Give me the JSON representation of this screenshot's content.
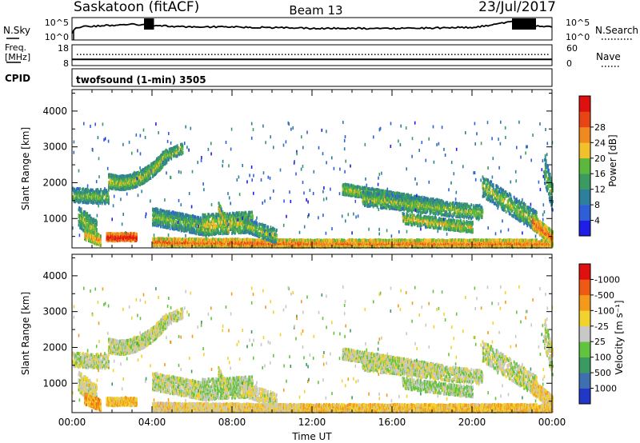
{
  "header": {
    "station": "Saskatoon (fitACF)",
    "beam": "Beam 13",
    "date": "23/Jul/2017"
  },
  "labels": {
    "nsky": "N.Sky",
    "nsearch": "N.Search",
    "freq_line1": "Freq.",
    "freq_line2": "[MHz]",
    "nave": "Nave",
    "cpid": "CPID",
    "program": "twofsound (1-min) 3505"
  },
  "chart_data": [
    {
      "type": "line",
      "name": "noise",
      "left_ticks": [
        "10^5",
        "10^0"
      ],
      "right_ticks": [
        "10^5",
        "10^0"
      ],
      "series": [
        {
          "name": "N.Sky",
          "style": "solid",
          "values_log10_profile": [
            [
              0,
              1.5
            ],
            [
              0.2,
              2.6
            ],
            [
              0.5,
              3.0
            ],
            [
              1,
              3.2
            ],
            [
              2,
              3.4
            ],
            [
              3,
              3.7
            ],
            [
              4,
              3.3
            ],
            [
              6,
              3.0
            ],
            [
              8,
              3.0
            ],
            [
              10,
              2.8
            ],
            [
              12,
              2.6
            ],
            [
              14,
              2.6
            ],
            [
              16,
              2.6
            ],
            [
              18,
              2.7
            ],
            [
              20,
              2.9
            ],
            [
              21,
              3.4
            ],
            [
              22,
              4.5
            ],
            [
              22.5,
              5.0
            ],
            [
              23,
              3.2
            ],
            [
              24,
              3.0
            ]
          ]
        }
      ]
    },
    {
      "type": "line",
      "name": "frequency-nave",
      "left_ticks": [
        "18",
        "8"
      ],
      "right_ticks": [
        "60",
        "0"
      ],
      "freq_mhz_range": [
        8,
        18
      ],
      "nave_range": [
        0,
        60
      ],
      "freq_mhz_approx": 11.0,
      "nave_approx": 32
    },
    {
      "type": "heatmap",
      "name": "power",
      "ylabel": "Slant Range [km]",
      "xlabel": "",
      "y_ticks": [
        1000,
        2000,
        3000,
        4000
      ],
      "ylim": [
        180,
        4600
      ],
      "xlim_hours": [
        0,
        24
      ],
      "colorbar_label": "Power [dB]",
      "colorbar_ticks": [
        "4",
        "8",
        "12",
        "16",
        "20",
        "24",
        "28"
      ],
      "colorbar_colors": [
        "#1e1ee6",
        "#2f5fd8",
        "#2e7f9e",
        "#3a9a62",
        "#5bb83c",
        "#f1c02a",
        "#f08a1e",
        "#e84416",
        "#e01010"
      ]
    },
    {
      "type": "heatmap",
      "name": "velocity",
      "ylabel": "Slant Range [km]",
      "xlabel": "Time UT",
      "x_ticks": [
        "00:00",
        "04:00",
        "08:00",
        "12:00",
        "16:00",
        "20:00",
        "00:00"
      ],
      "y_ticks": [
        1000,
        2000,
        3000,
        4000
      ],
      "ylim": [
        180,
        4600
      ],
      "xlim_hours": [
        0,
        24
      ],
      "colorbar_label": "Velocity [m s⁻¹]",
      "colorbar_ticks": [
        "1000",
        "500",
        "100",
        "25",
        "-25",
        "-100",
        "-500",
        "-1000"
      ],
      "colorbar_colors": [
        "#2236c8",
        "#3e6fb0",
        "#3a9a62",
        "#62c43e",
        "#c8c8c8",
        "#f2d22c",
        "#f49a1a",
        "#ee5a14",
        "#e01010"
      ]
    }
  ],
  "echo_bands": [
    {
      "t": [
        0.0,
        1.8
      ],
      "r": [
        1650,
        1600
      ],
      "w": 160,
      "d": 0.55,
      "p": 0.25,
      "v": 0.5
    },
    {
      "t": [
        1.8,
        4.7
      ],
      "r": [
        2050,
        2750
      ],
      "w": 190,
      "d": 0.8,
      "p": 0.35,
      "v": 0.5,
      "mid": 1800
    },
    {
      "t": [
        4.5,
        5.5
      ],
      "r": [
        2700,
        2950
      ],
      "w": 140,
      "d": 0.55,
      "p": 0.3,
      "v": 0.5
    },
    {
      "t": [
        0.3,
        1.2
      ],
      "r": [
        1050,
        650
      ],
      "w": 250,
      "d": 0.6,
      "p": 0.3,
      "v": 0.55
    },
    {
      "t": [
        1.7,
        3.2
      ],
      "r": [
        480,
        480
      ],
      "w": 70,
      "d": 0.95,
      "p": 0.95,
      "v": 0.68
    },
    {
      "t": [
        0.6,
        1.4
      ],
      "r": [
        560,
        380
      ],
      "w": 120,
      "d": 0.75,
      "p": 0.55,
      "v": 0.72
    },
    {
      "t": [
        4.0,
        11.5
      ],
      "r": [
        340,
        300
      ],
      "w": 110,
      "d": 0.9,
      "p": 0.7,
      "v": 0.6
    },
    {
      "t": [
        11.5,
        24.0
      ],
      "r": [
        300,
        300
      ],
      "w": 90,
      "d": 0.85,
      "p": 0.65,
      "v": 0.66
    },
    {
      "t": [
        4.0,
        6.8
      ],
      "r": [
        1050,
        750
      ],
      "w": 240,
      "d": 0.6,
      "p": 0.25,
      "v": 0.5
    },
    {
      "t": [
        6.5,
        9.0
      ],
      "r": [
        820,
        900
      ],
      "w": 260,
      "d": 0.5,
      "p": 0.4,
      "v": 0.45
    },
    {
      "t": [
        7.3,
        7.8
      ],
      "r": [
        1300,
        700
      ],
      "w": 120,
      "d": 0.6,
      "p": 0.45,
      "v": 0.5
    },
    {
      "t": [
        8.5,
        10.2
      ],
      "r": [
        850,
        500
      ],
      "w": 200,
      "d": 0.45,
      "p": 0.3,
      "v": 0.55
    },
    {
      "t": [
        13.5,
        18.5
      ],
      "r": [
        1820,
        1350
      ],
      "w": 130,
      "d": 0.75,
      "p": 0.35,
      "v": 0.5
    },
    {
      "t": [
        14.5,
        20.5
      ],
      "r": [
        1550,
        1150
      ],
      "w": 160,
      "d": 0.5,
      "p": 0.3,
      "v": 0.5
    },
    {
      "t": [
        16.5,
        20.0
      ],
      "r": [
        1000,
        750
      ],
      "w": 130,
      "d": 0.55,
      "p": 0.4,
      "v": 0.45
    },
    {
      "t": [
        20.5,
        23.2
      ],
      "r": [
        1900,
        900
      ],
      "w": 260,
      "d": 0.4,
      "p": 0.3,
      "v": 0.5
    },
    {
      "t": [
        23.0,
        24.0
      ],
      "r": [
        900,
        450
      ],
      "w": 170,
      "d": 0.85,
      "p": 0.7,
      "v": 0.62
    },
    {
      "t": [
        23.6,
        24.0
      ],
      "r": [
        2400,
        1600
      ],
      "w": 400,
      "d": 0.4,
      "p": 0.25,
      "v": 0.5
    }
  ]
}
